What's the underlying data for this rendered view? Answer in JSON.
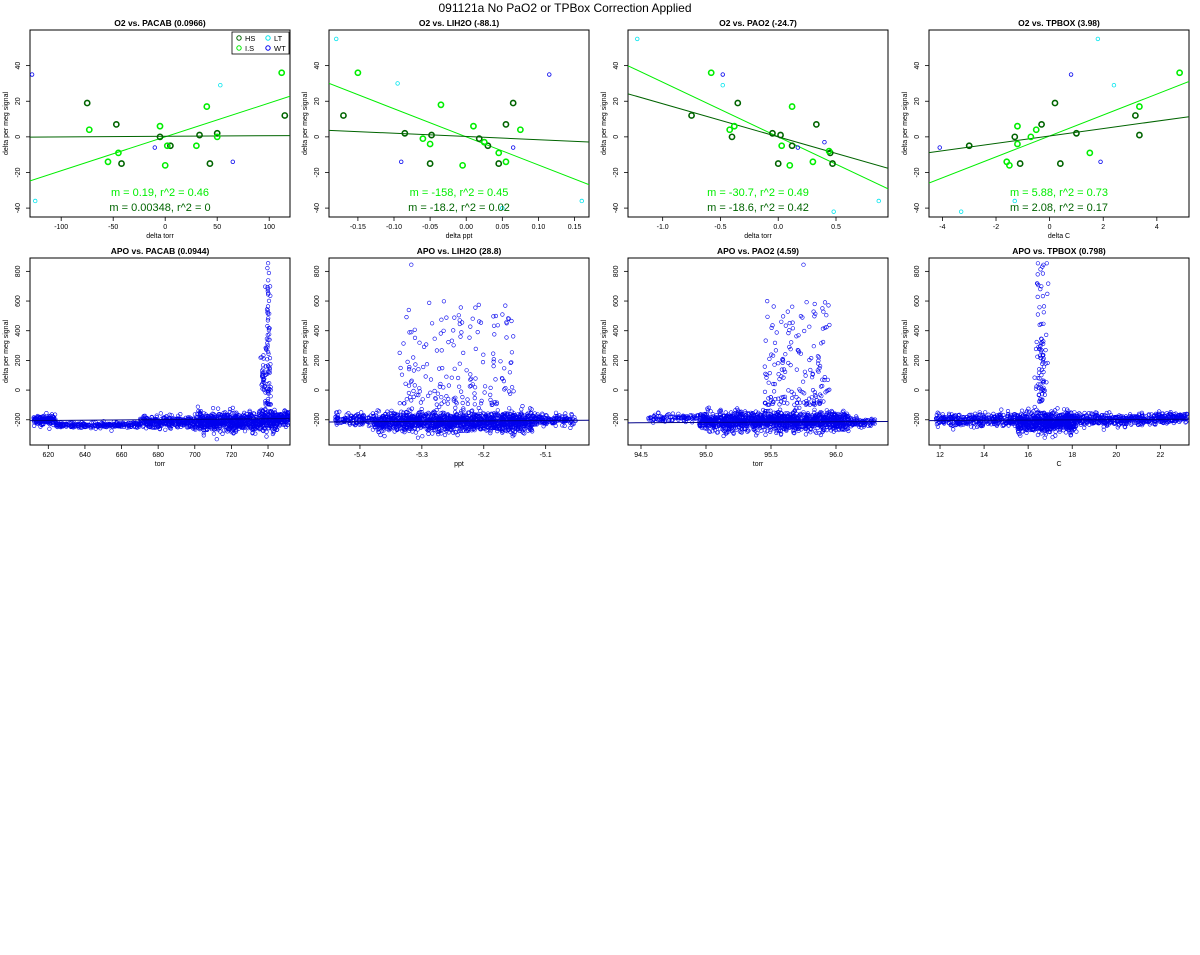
{
  "page": {
    "title": "091121a   No PaO2 or TPBox Correction Applied"
  },
  "legend": {
    "entries": [
      {
        "label": "HS",
        "color": "#006400"
      },
      {
        "label": "LT",
        "color": "#00e5ee"
      },
      {
        "label": "I.S",
        "color": "#00ee00"
      },
      {
        "label": "WT",
        "color": "#0000ee"
      }
    ]
  },
  "chart_data": [
    {
      "type": "scatter",
      "title": "O2 vs. PACAB (0.0966)",
      "xlabel": "delta torr",
      "ylabel": "delta per meg signal",
      "xlim": [
        -130,
        120
      ],
      "ylim": [
        -45,
        60
      ],
      "xticks": [
        -100,
        -50,
        0,
        50,
        100
      ],
      "yticks": [
        -40,
        -20,
        0,
        20,
        40
      ],
      "xtick_labels": [
        "-100",
        "-50",
        "0",
        "50",
        "100"
      ],
      "ytick_labels": [
        "-40",
        "-20",
        "0",
        "20",
        "40"
      ],
      "legend_position": "top-right",
      "series": [
        {
          "name": "HS",
          "color": "#006400",
          "x": [
            -75,
            -47,
            -42,
            -5,
            5,
            33,
            43,
            50,
            115
          ],
          "y": [
            19,
            7,
            -15,
            0,
            -5,
            1,
            -15,
            2,
            12
          ]
        },
        {
          "name": "I.S",
          "color": "#00ee00",
          "x": [
            -73,
            -55,
            -45,
            -5,
            0,
            2,
            30,
            40,
            50,
            112
          ],
          "y": [
            4,
            -14,
            -9,
            6,
            -16,
            -5,
            -5,
            17,
            0,
            36
          ]
        },
        {
          "name": "LT",
          "color": "#00e5ee",
          "x": [
            -125,
            53
          ],
          "y": [
            -36,
            29
          ]
        },
        {
          "name": "WT",
          "color": "#0000ee",
          "x": [
            -128,
            -10,
            65
          ],
          "y": [
            35,
            -6,
            -14
          ]
        }
      ],
      "fits": [
        {
          "color": "#00ee00",
          "slope": 0.19,
          "intercept": 0,
          "label": "m = 0.19, r^2 = 0.46"
        },
        {
          "color": "#006400",
          "slope": 0.00348,
          "intercept": 0.3,
          "label": "m = 0.00348, r^2 = 0"
        }
      ]
    },
    {
      "type": "scatter",
      "title": "O2 vs. LIH2O (-88.1)",
      "xlabel": "delta ppt",
      "ylabel": "delta per meg signal",
      "xlim": [
        -0.19,
        0.17
      ],
      "ylim": [
        -45,
        60
      ],
      "xticks": [
        -0.15,
        -0.1,
        -0.05,
        0.0,
        0.05,
        0.1,
        0.15
      ],
      "yticks": [
        -40,
        -20,
        0,
        20,
        40
      ],
      "xtick_labels": [
        "-0.15",
        "-0.10",
        "-0.05",
        "0.00",
        "0.05",
        "0.10",
        "0.15"
      ],
      "ytick_labels": [
        "-40",
        "-20",
        "0",
        "20",
        "40"
      ],
      "series": [
        {
          "name": "HS",
          "color": "#006400",
          "x": [
            -0.17,
            -0.085,
            -0.05,
            -0.048,
            0.018,
            0.03,
            0.045,
            0.055,
            0.065
          ],
          "y": [
            12,
            2,
            -15,
            1,
            -1,
            -5,
            -15,
            7,
            19
          ]
        },
        {
          "name": "I.S",
          "color": "#00ee00",
          "x": [
            -0.15,
            -0.06,
            -0.05,
            -0.035,
            -0.005,
            0.01,
            0.025,
            0.045,
            0.055,
            0.075
          ],
          "y": [
            36,
            -1,
            -4,
            18,
            -16,
            6,
            -3,
            -9,
            -14,
            4
          ]
        },
        {
          "name": "LT",
          "color": "#00e5ee",
          "x": [
            -0.18,
            -0.095,
            0.05,
            0.16
          ],
          "y": [
            55,
            30,
            -40,
            -36
          ]
        },
        {
          "name": "WT",
          "color": "#0000ee",
          "x": [
            -0.09,
            0.065,
            0.115
          ],
          "y": [
            -14,
            -6,
            35
          ]
        }
      ],
      "fits": [
        {
          "color": "#00ee00",
          "slope": -158,
          "intercept": 0,
          "label": "m = -158, r^2 = 0.45"
        },
        {
          "color": "#006400",
          "slope": -18.2,
          "intercept": 0.2,
          "label": "m = -18.2, r^2 = 0.02"
        }
      ]
    },
    {
      "type": "scatter",
      "title": "O2 vs. PAO2 (-24.7)",
      "xlabel": "delta torr",
      "ylabel": "delta per meg signal",
      "xlim": [
        -1.3,
        0.95
      ],
      "ylim": [
        -45,
        60
      ],
      "xticks": [
        -1.0,
        -0.5,
        0.0,
        0.5
      ],
      "yticks": [
        -40,
        -20,
        0,
        20,
        40
      ],
      "xtick_labels": [
        "-1.0",
        "-0.5",
        "0.0",
        "0.5"
      ],
      "ytick_labels": [
        "-40",
        "-20",
        "0",
        "20",
        "40"
      ],
      "series": [
        {
          "name": "HS",
          "color": "#006400",
          "x": [
            -0.75,
            -0.4,
            -0.35,
            -0.05,
            0.0,
            0.02,
            0.12,
            0.33,
            0.45,
            0.47
          ],
          "y": [
            12,
            0,
            19,
            2,
            -15,
            1,
            -5,
            7,
            -9,
            -15
          ]
        },
        {
          "name": "I.S",
          "color": "#00ee00",
          "x": [
            -0.58,
            -0.42,
            -0.38,
            0.03,
            0.1,
            0.12,
            0.3,
            0.44
          ],
          "y": [
            36,
            4,
            6,
            -5,
            -16,
            17,
            -14,
            -8
          ]
        },
        {
          "name": "LT",
          "color": "#00e5ee",
          "x": [
            -1.22,
            -0.48,
            0.48,
            0.87
          ],
          "y": [
            55,
            29,
            -42,
            -36
          ]
        },
        {
          "name": "WT",
          "color": "#0000ee",
          "x": [
            -0.48,
            0.17,
            0.4
          ],
          "y": [
            35,
            -6,
            -3
          ]
        }
      ],
      "fits": [
        {
          "color": "#00ee00",
          "slope": -30.7,
          "intercept": 0,
          "label": "m = -30.7, r^2 = 0.49"
        },
        {
          "color": "#006400",
          "slope": -18.6,
          "intercept": 0,
          "label": "m = -18.6, r^2 = 0.42"
        }
      ]
    },
    {
      "type": "scatter",
      "title": "O2 vs. TPBOX (3.98)",
      "xlabel": "delta C",
      "ylabel": "delta per meg signal",
      "xlim": [
        -4.5,
        5.2
      ],
      "ylim": [
        -45,
        60
      ],
      "xticks": [
        -4,
        -2,
        0,
        2,
        4
      ],
      "yticks": [
        -40,
        -20,
        0,
        20,
        40
      ],
      "xtick_labels": [
        "-4",
        "-2",
        "0",
        "2",
        "4"
      ],
      "ytick_labels": [
        "-40",
        "-20",
        "0",
        "20",
        "40"
      ],
      "series": [
        {
          "name": "HS",
          "color": "#006400",
          "x": [
            -3,
            -1.3,
            -1.1,
            -0.3,
            0.2,
            0.4,
            1.0,
            3.2,
            3.35
          ],
          "y": [
            -5,
            0,
            -15,
            7,
            19,
            -15,
            2,
            12,
            1
          ]
        },
        {
          "name": "I.S",
          "color": "#00ee00",
          "x": [
            -1.6,
            -1.5,
            -1.2,
            -1.2,
            -0.7,
            -0.5,
            1.5,
            3.35,
            4.85
          ],
          "y": [
            -14,
            -16,
            6,
            -4,
            0,
            4,
            -9,
            17,
            36
          ]
        },
        {
          "name": "LT",
          "color": "#00e5ee",
          "x": [
            -3.3,
            -1.3,
            1.8,
            2.4
          ],
          "y": [
            -42,
            -36,
            55,
            29
          ]
        },
        {
          "name": "WT",
          "color": "#0000ee",
          "x": [
            -4.1,
            0.8,
            1.9
          ],
          "y": [
            -6,
            35,
            -14
          ]
        }
      ],
      "fits": [
        {
          "color": "#00ee00",
          "slope": 5.88,
          "intercept": 0.5,
          "label": "m = 5.88, r^2 = 0.73"
        },
        {
          "color": "#006400",
          "slope": 2.08,
          "intercept": 0.5,
          "label": "m = 2.08, r^2 = 0.17"
        }
      ]
    },
    {
      "type": "scatter",
      "title": "APO vs. PACAB (0.0944)",
      "xlabel": "torr",
      "ylabel": "delta per meg signal",
      "xlim": [
        610,
        752
      ],
      "ylim": [
        -370,
        890
      ],
      "xticks": [
        620,
        640,
        660,
        680,
        700,
        720,
        740
      ],
      "yticks": [
        -200,
        0,
        200,
        400,
        600,
        800
      ],
      "xtick_labels": [
        "620",
        "640",
        "660",
        "680",
        "700",
        "720",
        "740"
      ],
      "ytick_labels": [
        "-200",
        "0",
        "200",
        "400",
        "600",
        "800"
      ],
      "fit_line": {
        "slope": 0.0944,
        "intercept": -263,
        "color": "#000088"
      },
      "clouds": [
        {
          "x": [
            612,
            624
          ],
          "center": -200,
          "spread": 25,
          "n": 150
        },
        {
          "x": [
            624,
            670
          ],
          "center": -235,
          "spread": 15,
          "n": 250
        },
        {
          "x": [
            670,
            700
          ],
          "center": -215,
          "spread": 35,
          "n": 300
        },
        {
          "x": [
            700,
            735
          ],
          "center": -215,
          "spread": 50,
          "n": 600
        },
        {
          "x": [
            735,
            745
          ],
          "center": -200,
          "spread": 60,
          "n": 200
        },
        {
          "x": [
            745,
            752
          ],
          "center": -190,
          "spread": 35,
          "n": 100
        }
      ],
      "spikes": [
        {
          "x": 740,
          "xspread": 1.5,
          "ymin": -100,
          "ymax": 860,
          "n": 80
        },
        {
          "x": 737,
          "xspread": 1.0,
          "ymin": 0,
          "ymax": 240,
          "n": 25
        }
      ]
    },
    {
      "type": "scatter",
      "title": "APO vs. LIH2O (28.8)",
      "xlabel": "ppt",
      "ylabel": "delta per meg signal",
      "xlim": [
        -5.45,
        -5.03
      ],
      "ylim": [
        -370,
        890
      ],
      "xticks": [
        -5.4,
        -5.3,
        -5.2,
        -5.1
      ],
      "yticks": [
        -200,
        0,
        200,
        400,
        600,
        800
      ],
      "xtick_labels": [
        "-5.4",
        "-5.3",
        "-5.2",
        "-5.1"
      ],
      "ytick_labels": [
        "-200",
        "0",
        "200",
        "400",
        "600",
        "800"
      ],
      "fit_line": {
        "slope": 28.8,
        "intercept": -58,
        "color": "#000088"
      },
      "clouds": [
        {
          "x": [
            -5.44,
            -5.38
          ],
          "center": -200,
          "spread": 35,
          "n": 120
        },
        {
          "x": [
            -5.38,
            -5.12
          ],
          "center": -215,
          "spread": 55,
          "n": 1400
        },
        {
          "x": [
            -5.12,
            -5.05
          ],
          "center": -200,
          "spread": 30,
          "n": 150
        }
      ],
      "scatter_region": {
        "x": [
          -5.34,
          -5.15
        ],
        "y": [
          -100,
          600
        ],
        "n": 170
      },
      "outliers": [
        {
          "x": -5.317,
          "y": 845
        }
      ]
    },
    {
      "type": "scatter",
      "title": "APO vs. PAO2 (4.59)",
      "xlabel": "torr",
      "ylabel": "delta per meg signal",
      "xlim": [
        94.4,
        96.4
      ],
      "ylim": [
        -370,
        890
      ],
      "xticks": [
        94.5,
        95.0,
        95.5,
        96.0
      ],
      "yticks": [
        -200,
        0,
        200,
        400,
        600,
        800
      ],
      "xtick_labels": [
        "94.5",
        "95.0",
        "95.5",
        "96.0"
      ],
      "ytick_labels": [
        "-200",
        "0",
        "200",
        "400",
        "600",
        "800"
      ],
      "fit_line": {
        "slope": 4.59,
        "intercept": -654,
        "color": "#000088"
      },
      "clouds": [
        {
          "x": [
            94.55,
            94.95
          ],
          "center": -190,
          "spread": 25,
          "n": 100
        },
        {
          "x": [
            94.95,
            96.1
          ],
          "center": -210,
          "spread": 50,
          "n": 1400
        },
        {
          "x": [
            96.1,
            96.3
          ],
          "center": -215,
          "spread": 25,
          "n": 80
        }
      ],
      "scatter_region": {
        "x": [
          95.45,
          95.95
        ],
        "y": [
          -100,
          600
        ],
        "n": 170
      },
      "outliers": [
        {
          "x": 95.75,
          "y": 845
        }
      ]
    },
    {
      "type": "scatter",
      "title": "APO vs. TPBOX (0.798)",
      "xlabel": "C",
      "ylabel": "delta per meg signal",
      "xlim": [
        11.5,
        23.3
      ],
      "ylim": [
        -370,
        890
      ],
      "xticks": [
        12,
        14,
        16,
        18,
        20,
        22
      ],
      "yticks": [
        -200,
        0,
        200,
        400,
        600,
        800
      ],
      "xtick_labels": [
        "12",
        "14",
        "16",
        "18",
        "20",
        "22"
      ],
      "ytick_labels": [
        "-200",
        "0",
        "200",
        "400",
        "600",
        "800"
      ],
      "fit_line": {
        "slope": 0.798,
        "intercept": -215,
        "color": "#000088"
      },
      "clouds": [
        {
          "x": [
            11.8,
            15.5
          ],
          "center": -200,
          "spread": 35,
          "n": 350
        },
        {
          "x": [
            15.5,
            18.2
          ],
          "center": -215,
          "spread": 55,
          "n": 700
        },
        {
          "x": [
            18.2,
            21.8
          ],
          "center": -200,
          "spread": 35,
          "n": 350
        },
        {
          "x": [
            21.8,
            23.2
          ],
          "center": -190,
          "spread": 35,
          "n": 150
        }
      ],
      "spikes": [
        {
          "x": 16.6,
          "xspread": 0.25,
          "ymin": -80,
          "ymax": 860,
          "n": 90
        }
      ]
    }
  ]
}
